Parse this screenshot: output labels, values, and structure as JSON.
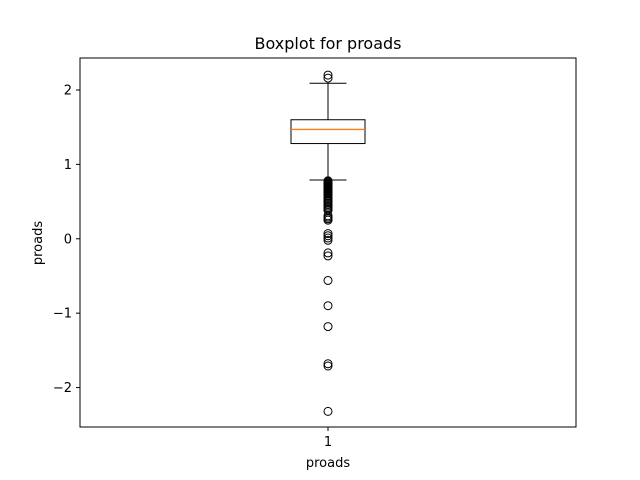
{
  "chart_data": {
    "type": "boxplot",
    "title": "Boxplot for proads",
    "xlabel": "proads",
    "ylabel": "proads",
    "categories": [
      "1"
    ],
    "yticks": [
      -2,
      -1,
      0,
      1,
      2
    ],
    "ylim": [
      -2.53,
      2.43
    ],
    "grid": false,
    "series": [
      {
        "whisker_low": 0.79,
        "q1": 1.28,
        "median": 1.47,
        "q3": 1.6,
        "whisker_high": 2.09,
        "outliers_high": [
          2.16,
          2.2
        ],
        "outliers_low": [
          0.78,
          0.77,
          0.76,
          0.75,
          0.74,
          0.73,
          0.72,
          0.71,
          0.7,
          0.69,
          0.68,
          0.67,
          0.66,
          0.65,
          0.64,
          0.63,
          0.62,
          0.61,
          0.6,
          0.58,
          0.56,
          0.54,
          0.52,
          0.5,
          0.48,
          0.46,
          0.44,
          0.42,
          0.4,
          0.38,
          0.31,
          0.29,
          0.27,
          0.25,
          0.07,
          0.04,
          0.01,
          -0.02,
          -0.19,
          -0.23,
          -0.56,
          -0.9,
          -1.18,
          -1.68,
          -1.71,
          -2.32
        ]
      }
    ],
    "colors": {
      "box": "#000000",
      "median": "#ff7f0e",
      "outlier": "#000000"
    }
  }
}
